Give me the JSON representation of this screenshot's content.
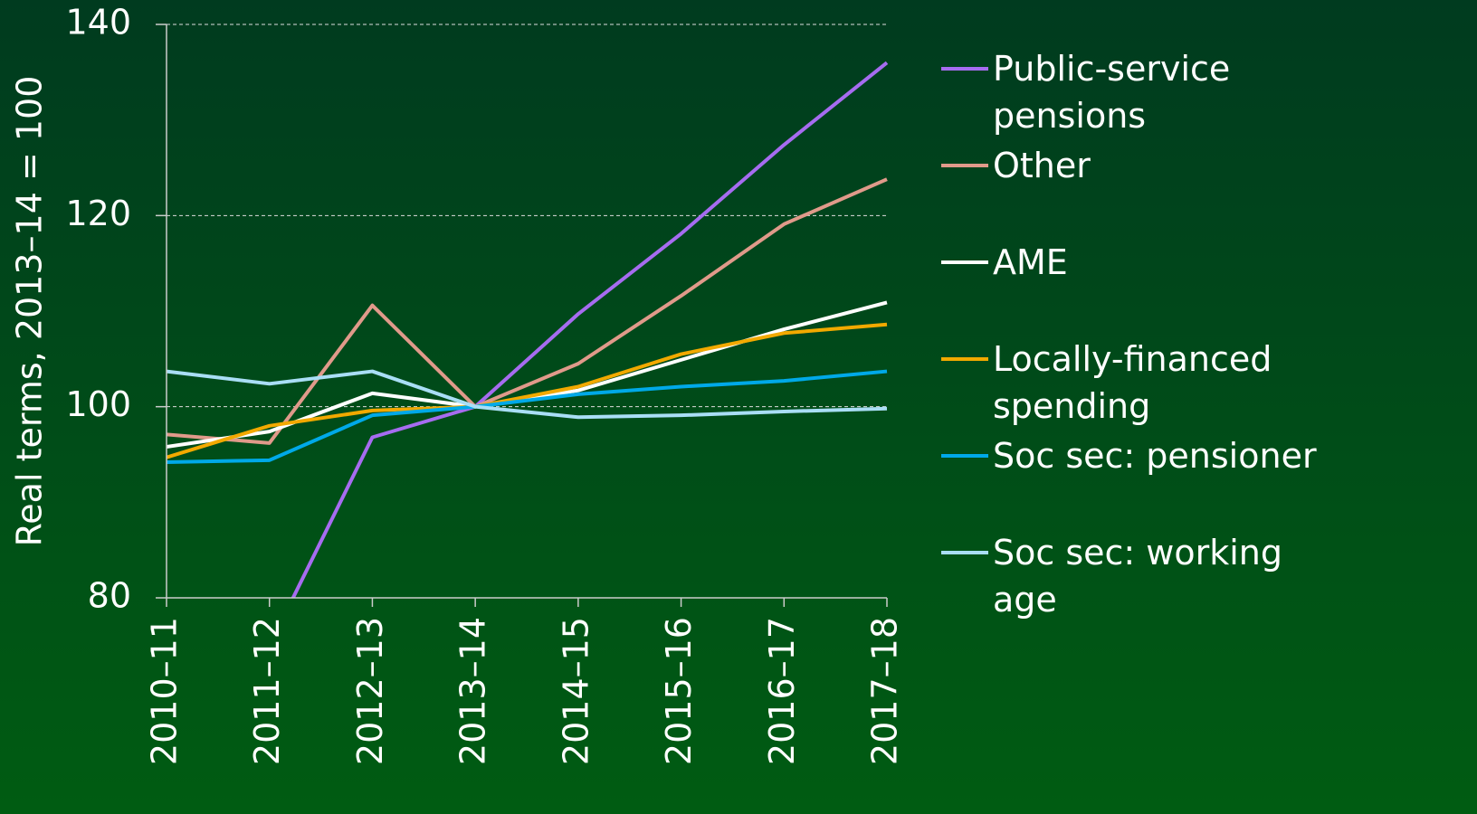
{
  "chart_data": {
    "type": "line",
    "ylabel": "Real terms, 2013–14 = 100",
    "categories": [
      "2010–11",
      "2011–12",
      "2012–13",
      "2013–14",
      "2014–15",
      "2015–16",
      "2016–17",
      "2017–18"
    ],
    "series": [
      {
        "name": "Public-service pensions",
        "color": "#a66cf0",
        "values": [
          null,
          75.0,
          96.8,
          100,
          109.7,
          118.1,
          127.4,
          136.0
        ]
      },
      {
        "name": "Other",
        "color": "#e09a8a",
        "values": [
          97.1,
          96.2,
          110.6,
          100,
          104.5,
          111.6,
          119.1,
          123.8
        ]
      },
      {
        "name": "AME",
        "color": "#ffffff",
        "values": [
          95.8,
          97.4,
          101.4,
          100,
          101.7,
          104.9,
          108.1,
          110.9
        ]
      },
      {
        "name": "Locally-financed spending",
        "color": "#f2a900",
        "values": [
          94.7,
          98.0,
          99.6,
          100,
          102.1,
          105.5,
          107.7,
          108.6
        ]
      },
      {
        "name": "Soc sec: pensioner",
        "color": "#00a9e8",
        "values": [
          94.2,
          94.4,
          99.1,
          100,
          101.3,
          102.1,
          102.7,
          103.7
        ]
      },
      {
        "name": "Soc sec: working age",
        "color": "#a9def5",
        "values": [
          103.7,
          102.4,
          103.7,
          100,
          98.9,
          99.1,
          99.5,
          99.8
        ]
      }
    ],
    "ylim": [
      80,
      140
    ],
    "yticks": [
      80,
      100,
      120,
      140
    ],
    "grid": true
  }
}
